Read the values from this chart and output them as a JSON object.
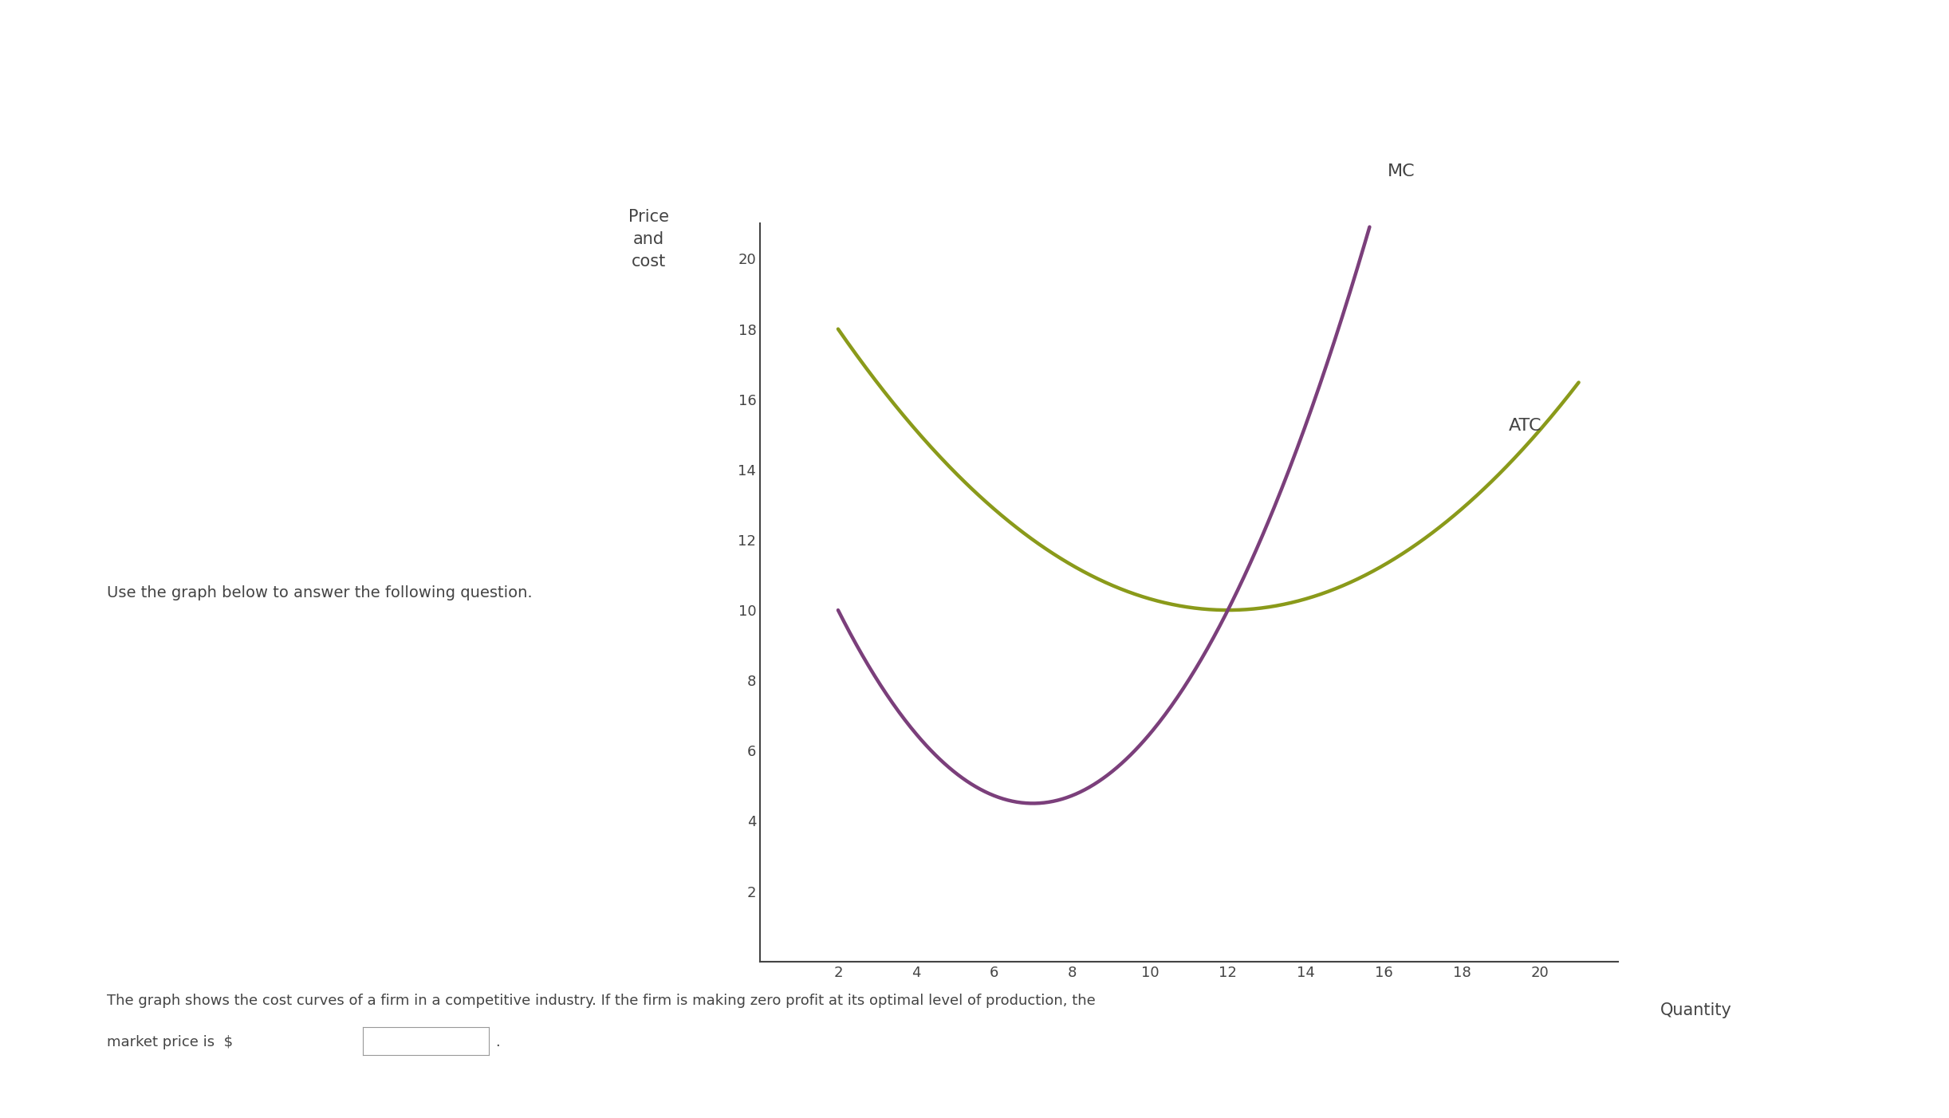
{
  "ylabel": "Price\nand\ncost",
  "xlabel": "Quantity",
  "background_color": "#ffffff",
  "text_color": "#444444",
  "atc_color": "#8a9a1a",
  "mc_color": "#7b3f7b",
  "ylim": [
    0,
    21
  ],
  "xlim": [
    0,
    22
  ],
  "yticks": [
    2,
    4,
    6,
    8,
    10,
    12,
    14,
    16,
    18,
    20
  ],
  "xticks": [
    2,
    4,
    6,
    8,
    10,
    12,
    14,
    16,
    18,
    20
  ],
  "atc_label": "ATC",
  "mc_label": "MC",
  "side_text": "Use the graph below to answer the following question.",
  "bottom_line1": "The graph shows the cost curves of a firm in a competitive industry. If the firm is making zero profit at its optimal level of production, the",
  "bottom_line2": "market price is  $",
  "line_width": 3.2,
  "font_size_ticks": 13,
  "font_size_label": 15,
  "font_size_curve_label": 15,
  "font_size_side_text": 14,
  "font_size_bottom": 13,
  "atc_a": 0.08,
  "atc_min_x": 12,
  "atc_min_y": 10,
  "mc_a": 0.22,
  "mc_min_x": 7,
  "mc_min_y": 4.5,
  "atc_x_start": 2,
  "atc_x_end": 21,
  "mc_x_start": 2,
  "mc_x_end": 17.5
}
